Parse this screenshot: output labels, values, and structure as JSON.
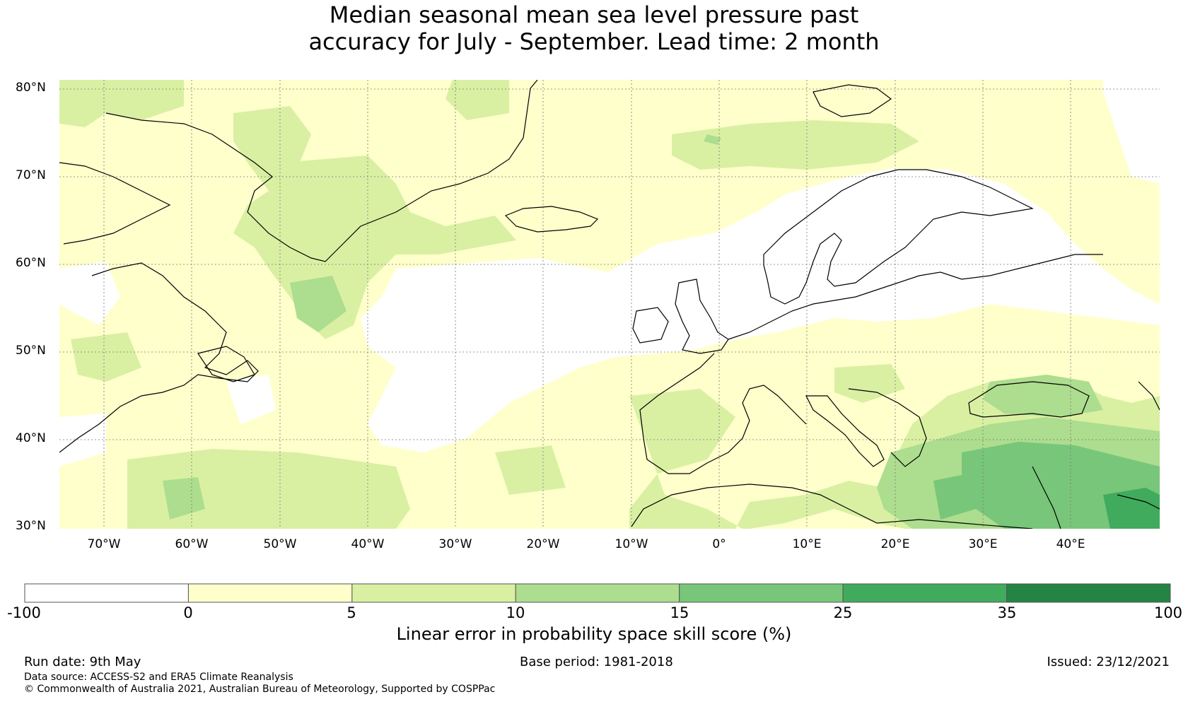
{
  "title_line1": "Median seasonal mean sea level pressure past",
  "title_line2": "accuracy for July - September. Lead time: 2 month",
  "map": {
    "lon_range": [
      -75,
      50
    ],
    "lat_range": [
      30,
      80
    ],
    "lat_labels": [
      "30°N",
      "40°N",
      "50°N",
      "60°N",
      "70°N",
      "80°N"
    ],
    "lon_labels": [
      "70°W",
      "60°W",
      "50°W",
      "40°W",
      "30°W",
      "20°W",
      "10°W",
      "0°",
      "10°E",
      "20°E",
      "30°E",
      "40°E"
    ]
  },
  "colorbar": {
    "boundaries": [
      "-100",
      "0",
      "5",
      "10",
      "15",
      "25",
      "35",
      "100"
    ],
    "colors": [
      "#ffffff",
      "#ffffcc",
      "#d9f0a3",
      "#addd8e",
      "#78c679",
      "#41ab5d",
      "#238443"
    ],
    "label": "Linear error in probability space skill score (%)"
  },
  "footer": {
    "run_date": "Run date: 9th May",
    "base_period": "Base period: 1981-2018",
    "issued": "Issued: 23/12/2021",
    "data_source": "Data source: ACCESS-S2 and ERA5 Climate Reanalysis",
    "copyright": "© Commonwealth of Australia 2021, Australian Bureau of Meteorology, Supported by COSPPac"
  }
}
